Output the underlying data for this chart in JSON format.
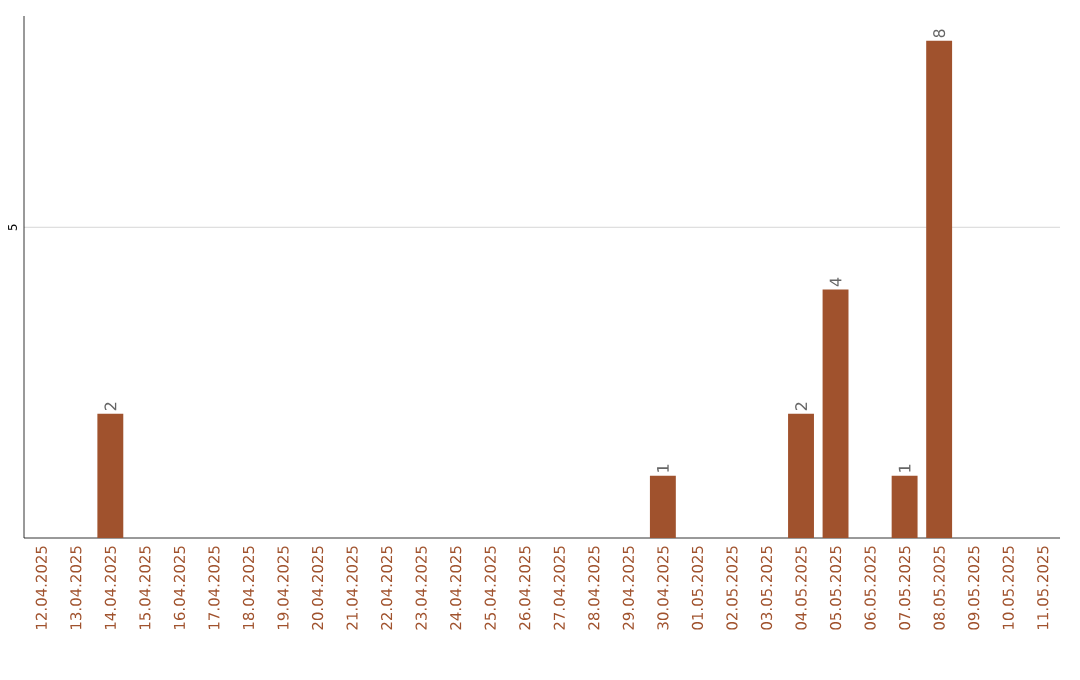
{
  "chart_data": {
    "type": "bar",
    "categories": [
      "12.04.2025",
      "13.04.2025",
      "14.04.2025",
      "15.04.2025",
      "16.04.2025",
      "17.04.2025",
      "18.04.2025",
      "19.04.2025",
      "20.04.2025",
      "21.04.2025",
      "22.04.2025",
      "23.04.2025",
      "24.04.2025",
      "25.04.2025",
      "26.04.2025",
      "27.04.2025",
      "28.04.2025",
      "29.04.2025",
      "30.04.2025",
      "01.05.2025",
      "02.05.2025",
      "03.05.2025",
      "04.05.2025",
      "05.05.2025",
      "06.05.2025",
      "07.05.2025",
      "08.05.2025",
      "09.05.2025",
      "10.05.2025",
      "11.05.2025"
    ],
    "values": [
      0,
      0,
      2,
      0,
      0,
      0,
      0,
      0,
      0,
      0,
      0,
      0,
      0,
      0,
      0,
      0,
      0,
      0,
      1,
      0,
      0,
      0,
      2,
      4,
      0,
      1,
      8,
      0,
      0,
      0
    ],
    "value_labels": [
      null,
      null,
      "2",
      null,
      null,
      null,
      null,
      null,
      null,
      null,
      null,
      null,
      null,
      null,
      null,
      null,
      null,
      null,
      "1",
      null,
      null,
      null,
      "2",
      "4",
      null,
      "1",
      "8",
      null,
      null,
      null
    ],
    "color": "#a0522d",
    "ylim": [
      0,
      8.4
    ],
    "yticks": [
      5
    ],
    "grid": "y"
  }
}
